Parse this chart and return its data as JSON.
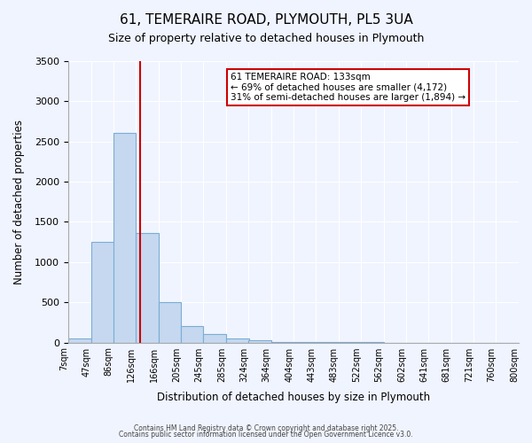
{
  "title": "61, TEMERAIRE ROAD, PLYMOUTH, PL5 3UA",
  "subtitle": "Size of property relative to detached houses in Plymouth",
  "xlabel": "Distribution of detached houses by size in Plymouth",
  "ylabel": "Number of detached properties",
  "bar_color": "#c5d8f0",
  "bar_edge_color": "#7badd4",
  "background_color": "#f0f4ff",
  "grid_color": "#ffffff",
  "bin_edges": [
    7,
    47,
    86,
    126,
    166,
    205,
    245,
    285,
    324,
    364,
    404,
    443,
    483,
    522,
    562,
    602,
    641,
    681,
    721,
    760,
    800
  ],
  "bin_labels": [
    "7sqm",
    "47sqm",
    "86sqm",
    "126sqm",
    "166sqm",
    "205sqm",
    "245sqm",
    "285sqm",
    "324sqm",
    "364sqm",
    "404sqm",
    "443sqm",
    "483sqm",
    "522sqm",
    "562sqm",
    "602sqm",
    "641sqm",
    "681sqm",
    "721sqm",
    "760sqm",
    "800sqm"
  ],
  "counts": [
    55,
    1250,
    2610,
    1360,
    500,
    200,
    110,
    55,
    25,
    10,
    5,
    3,
    2,
    1,
    0,
    0,
    0,
    0,
    0,
    0
  ],
  "property_size": 133,
  "vline_color": "#cc0000",
  "annotation_box_edge_color": "#cc0000",
  "annotation_line1": "61 TEMERAIRE ROAD: 133sqm",
  "annotation_line2": "← 69% of detached houses are smaller (4,172)",
  "annotation_line3": "31% of semi-detached houses are larger (1,894) →",
  "ylim": [
    0,
    3500
  ],
  "yticks": [
    0,
    500,
    1000,
    1500,
    2000,
    2500,
    3000,
    3500
  ],
  "footer1": "Contains HM Land Registry data © Crown copyright and database right 2025.",
  "footer2": "Contains public sector information licensed under the Open Government Licence v3.0."
}
